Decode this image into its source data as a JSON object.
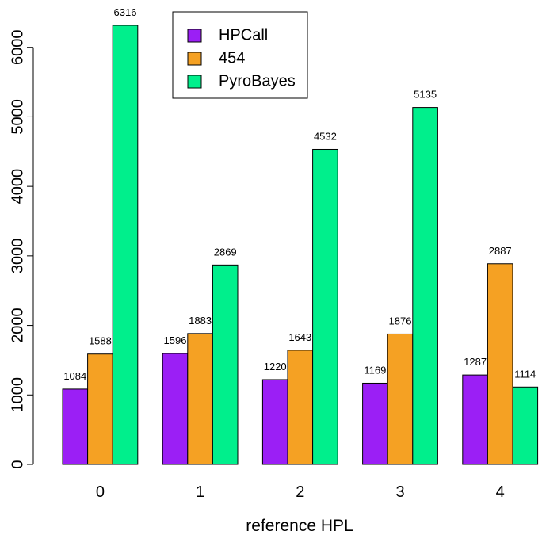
{
  "chart_data": {
    "type": "bar",
    "xlabel": "reference HPL",
    "ylabel": "",
    "title": "",
    "categories": [
      "0",
      "1",
      "2",
      "3",
      "4"
    ],
    "series": [
      {
        "name": "HPCall",
        "color": "#9b1ff5",
        "values": [
          1084,
          1596,
          1220,
          1169,
          1287
        ]
      },
      {
        "name": "454",
        "color": "#f5a123",
        "values": [
          1588,
          1883,
          1643,
          1876,
          2887
        ]
      },
      {
        "name": "PyroBayes",
        "color": "#00ef8c",
        "values": [
          6316,
          2869,
          4532,
          5135,
          1114
        ]
      }
    ],
    "ylim": [
      0,
      6316
    ],
    "yticks": [
      "0",
      "1000",
      "2000",
      "3000",
      "4000",
      "5000",
      "6000"
    ],
    "legend_position": "top-center",
    "grid": false
  }
}
